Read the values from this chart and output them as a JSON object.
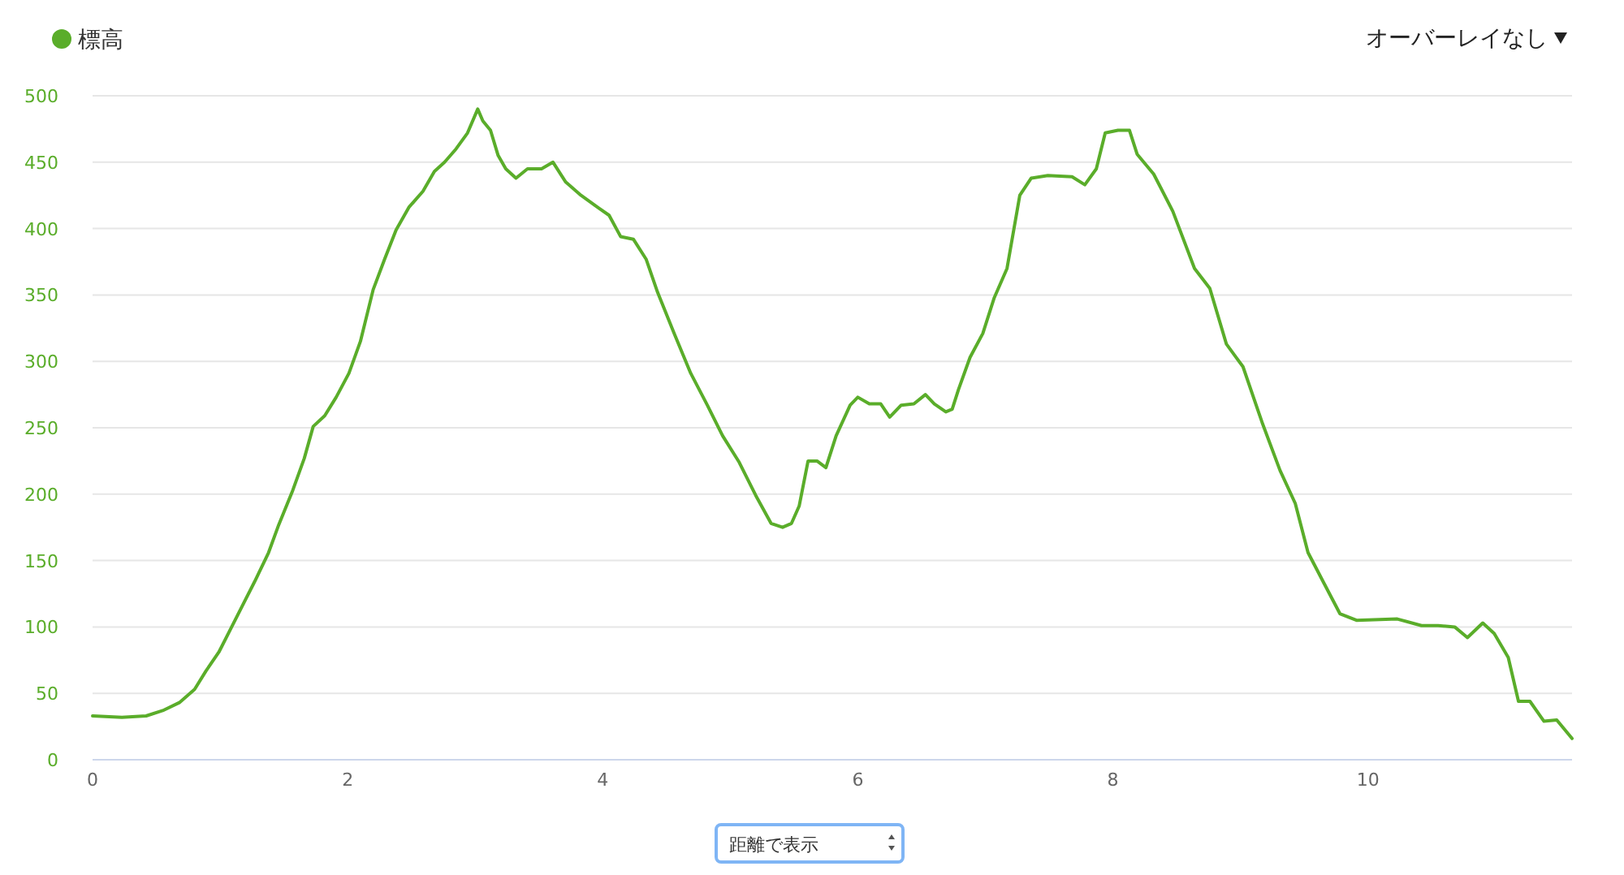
{
  "chart_data": {
    "type": "line",
    "legend": "top left",
    "grid": "y",
    "marker": "none",
    "line_style": "solid",
    "x": [
      0,
      0.23,
      0.42,
      0.55,
      0.68,
      0.8,
      0.89,
      0.99,
      1.08,
      1.18,
      1.27,
      1.38,
      1.46,
      1.57,
      1.66,
      1.73,
      1.82,
      1.91,
      2.01,
      2.1,
      2.2,
      2.29,
      2.38,
      2.48,
      2.59,
      2.68,
      2.76,
      2.85,
      2.94,
      3.02,
      3.06,
      3.12,
      3.18,
      3.24,
      3.32,
      3.41,
      3.52,
      3.61,
      3.71,
      3.83,
      3.96,
      4.05,
      4.14,
      4.24,
      4.34,
      4.43,
      4.56,
      4.69,
      4.82,
      4.94,
      5.07,
      5.2,
      5.32,
      5.41,
      5.48,
      5.54,
      5.61,
      5.68,
      5.75,
      5.83,
      5.94,
      6.0,
      6.09,
      6.18,
      6.25,
      6.34,
      6.44,
      6.53,
      6.6,
      6.69,
      6.74,
      6.79,
      6.88,
      6.98,
      7.07,
      7.17,
      7.27,
      7.36,
      7.49,
      7.68,
      7.78,
      7.87,
      7.94,
      8.04,
      8.13,
      8.19,
      8.32,
      8.47,
      8.64,
      8.76,
      8.89,
      9.02,
      9.17,
      9.31,
      9.43,
      9.53,
      9.66,
      9.78,
      9.91,
      10.23,
      10.42,
      10.55,
      10.68,
      10.78,
      10.9,
      10.99,
      11.1,
      11.18,
      11.27,
      11.38,
      11.48,
      11.6
    ],
    "series": [
      {
        "name": "標高",
        "color": "#5aad2a",
        "values": [
          33,
          32,
          33,
          37,
          43,
          53,
          67,
          81,
          98,
          117,
          134,
          156,
          177,
          203,
          227,
          251,
          259,
          273,
          291,
          315,
          354,
          377,
          399,
          416,
          428,
          443,
          450,
          460,
          472,
          490,
          481,
          474,
          455,
          445,
          438,
          445,
          445,
          450,
          435,
          425,
          416,
          410,
          394,
          392,
          377,
          352,
          321,
          291,
          267,
          244,
          224,
          199,
          178,
          175,
          178,
          191,
          225,
          225,
          220,
          244,
          267,
          273,
          268,
          268,
          258,
          267,
          268,
          275,
          268,
          262,
          264,
          279,
          303,
          321,
          348,
          370,
          425,
          438,
          440,
          439,
          433,
          445,
          472,
          474,
          474,
          456,
          441,
          413,
          370,
          355,
          313,
          296,
          254,
          218,
          193,
          156,
          132,
          110,
          105,
          106,
          101,
          101,
          100,
          92,
          103,
          95,
          77,
          44,
          44,
          29,
          30,
          16
        ]
      }
    ],
    "xlim": [
      0,
      11.6
    ],
    "xticks": [
      0,
      2,
      4,
      6,
      8,
      10
    ],
    "ylim": [
      0,
      500
    ],
    "yticks": [
      0,
      50,
      100,
      150,
      200,
      250,
      300,
      350,
      400,
      450,
      500
    ],
    "annotations": [
      "オーバーレイなし",
      "距離で表示"
    ]
  }
}
